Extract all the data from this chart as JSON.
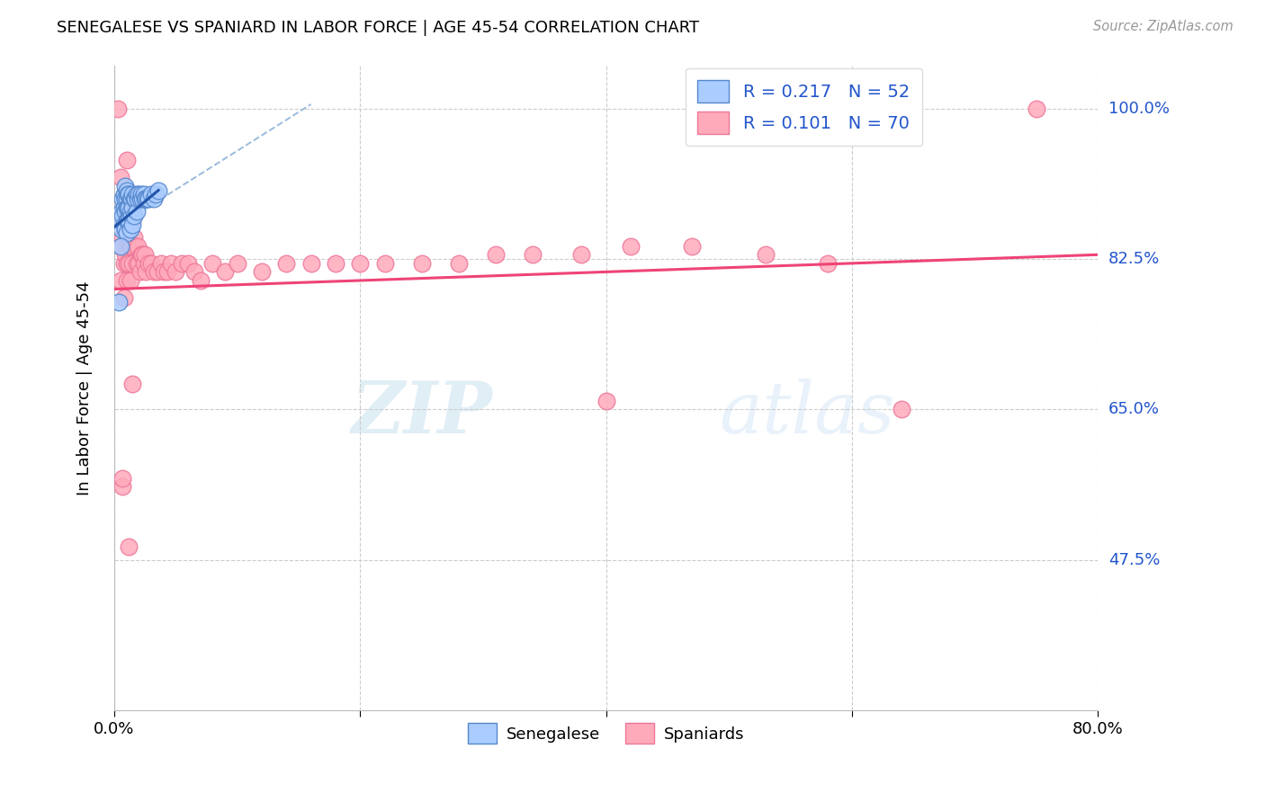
{
  "title": "SENEGALESE VS SPANIARD IN LABOR FORCE | AGE 45-54 CORRELATION CHART",
  "source": "Source: ZipAtlas.com",
  "ylabel": "In Labor Force | Age 45-54",
  "xlim": [
    0.0,
    0.8
  ],
  "ylim": [
    0.3,
    1.05
  ],
  "ytick_positions": [
    1.0,
    0.825,
    0.65,
    0.475
  ],
  "ytick_labels": [
    "100.0%",
    "82.5%",
    "65.0%",
    "47.5%"
  ],
  "legend_R_blue": "0.217",
  "legend_N_blue": "52",
  "legend_R_pink": "0.101",
  "legend_N_pink": "70",
  "blue_scatter_color": "#aaccff",
  "blue_edge_color": "#5588cc",
  "pink_scatter_color": "#ffaabb",
  "pink_edge_color": "#ee7799",
  "trend_blue_color": "#2255aa",
  "trend_pink_color": "#ee4477",
  "dashed_line_color": "#99bbdd",
  "watermark_color": "#cce8f8",
  "senegalese_x": [
    0.004,
    0.005,
    0.006,
    0.006,
    0.007,
    0.007,
    0.008,
    0.008,
    0.008,
    0.009,
    0.009,
    0.009,
    0.009,
    0.01,
    0.01,
    0.01,
    0.01,
    0.01,
    0.011,
    0.011,
    0.011,
    0.012,
    0.012,
    0.012,
    0.013,
    0.013,
    0.013,
    0.014,
    0.014,
    0.015,
    0.015,
    0.015,
    0.016,
    0.016,
    0.017,
    0.018,
    0.018,
    0.019,
    0.02,
    0.021,
    0.022,
    0.023,
    0.024,
    0.025,
    0.026,
    0.027,
    0.028,
    0.03,
    0.032,
    0.034,
    0.005,
    0.036
  ],
  "senegalese_y": [
    0.775,
    0.87,
    0.86,
    0.88,
    0.895,
    0.875,
    0.9,
    0.885,
    0.865,
    0.91,
    0.895,
    0.88,
    0.86,
    0.905,
    0.895,
    0.885,
    0.87,
    0.855,
    0.9,
    0.885,
    0.87,
    0.9,
    0.885,
    0.87,
    0.895,
    0.88,
    0.86,
    0.895,
    0.875,
    0.9,
    0.885,
    0.865,
    0.895,
    0.875,
    0.895,
    0.9,
    0.88,
    0.895,
    0.9,
    0.895,
    0.9,
    0.895,
    0.9,
    0.895,
    0.895,
    0.895,
    0.895,
    0.9,
    0.895,
    0.9,
    0.84,
    0.905
  ],
  "spaniards_x": [
    0.003,
    0.005,
    0.005,
    0.006,
    0.007,
    0.008,
    0.008,
    0.009,
    0.01,
    0.01,
    0.01,
    0.011,
    0.012,
    0.012,
    0.013,
    0.013,
    0.014,
    0.015,
    0.015,
    0.016,
    0.017,
    0.018,
    0.019,
    0.02,
    0.021,
    0.022,
    0.023,
    0.024,
    0.025,
    0.026,
    0.028,
    0.03,
    0.032,
    0.035,
    0.038,
    0.04,
    0.043,
    0.046,
    0.05,
    0.055,
    0.06,
    0.065,
    0.07,
    0.08,
    0.09,
    0.1,
    0.12,
    0.14,
    0.16,
    0.18,
    0.2,
    0.22,
    0.25,
    0.28,
    0.31,
    0.34,
    0.38,
    0.42,
    0.47,
    0.53,
    0.58,
    0.64,
    0.005,
    0.01,
    0.015,
    0.4,
    0.007,
    0.012,
    0.75,
    0.007
  ],
  "spaniards_y": [
    1.0,
    0.84,
    0.8,
    0.87,
    0.85,
    0.82,
    0.78,
    0.83,
    0.87,
    0.82,
    0.8,
    0.85,
    0.87,
    0.82,
    0.84,
    0.8,
    0.84,
    0.87,
    0.82,
    0.85,
    0.84,
    0.82,
    0.84,
    0.82,
    0.81,
    0.83,
    0.83,
    0.82,
    0.83,
    0.81,
    0.82,
    0.82,
    0.81,
    0.81,
    0.82,
    0.81,
    0.81,
    0.82,
    0.81,
    0.82,
    0.82,
    0.81,
    0.8,
    0.82,
    0.81,
    0.82,
    0.81,
    0.82,
    0.82,
    0.82,
    0.82,
    0.82,
    0.82,
    0.82,
    0.83,
    0.83,
    0.83,
    0.84,
    0.84,
    0.83,
    0.82,
    0.65,
    0.92,
    0.94,
    0.68,
    0.66,
    0.56,
    0.49,
    1.0,
    0.57
  ]
}
